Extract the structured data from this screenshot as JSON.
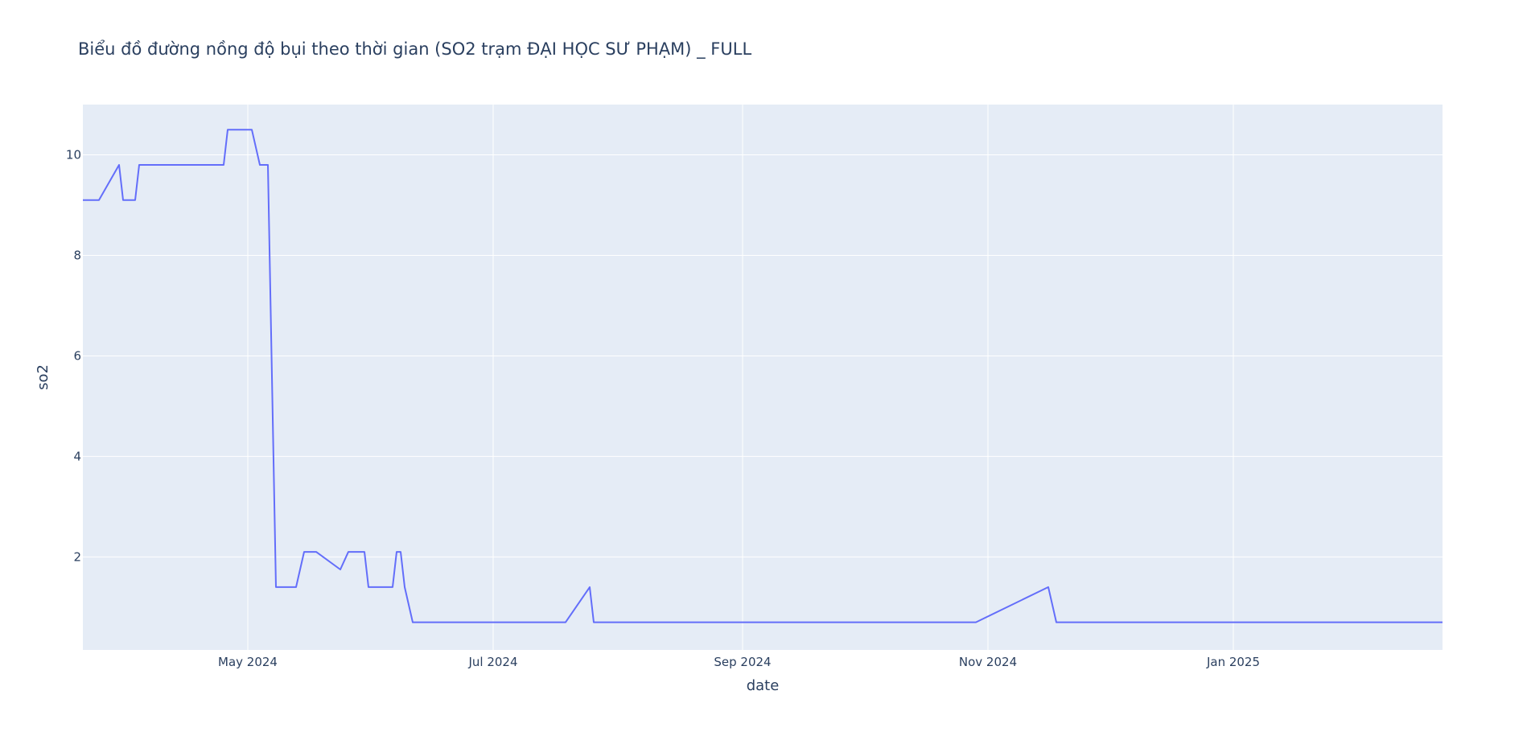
{
  "chart_data": {
    "type": "line",
    "title": "Biểu đồ đường nồng độ bụi theo thời gian (SO2 trạm ĐẠI HỌC SƯ PHẠM) _ FULL",
    "xlabel": "date",
    "ylabel": "so2",
    "x_ticks": [
      {
        "date": "2024-05-01",
        "label": "May 2024"
      },
      {
        "date": "2024-07-01",
        "label": "Jul 2024"
      },
      {
        "date": "2024-09-01",
        "label": "Sep 2024"
      },
      {
        "date": "2024-11-01",
        "label": "Nov 2024"
      },
      {
        "date": "2025-01-01",
        "label": "Jan 2025"
      }
    ],
    "y_ticks": [
      {
        "value": 2,
        "label": "2"
      },
      {
        "value": 4,
        "label": "4"
      },
      {
        "value": 6,
        "label": "6"
      },
      {
        "value": 8,
        "label": "8"
      },
      {
        "value": 10,
        "label": "10"
      }
    ],
    "xlim": [
      "2024-03-21",
      "2025-02-22"
    ],
    "ylim": [
      0.15,
      11.0
    ],
    "grid": true,
    "colors": {
      "line": "#636efa",
      "plot_bg": "#e5ecf6",
      "grid": "#ffffff",
      "text": "#2a3f5f"
    },
    "series": [
      {
        "x": [
          "2024-03-21",
          "2024-03-25",
          "2024-03-30",
          "2024-03-31",
          "2024-04-03",
          "2024-04-04",
          "2024-04-25",
          "2024-04-26",
          "2024-05-02",
          "2024-05-04",
          "2024-05-06",
          "2024-05-08",
          "2024-05-13",
          "2024-05-15",
          "2024-05-18",
          "2024-05-24",
          "2024-05-26",
          "2024-05-30",
          "2024-05-31",
          "2024-06-06",
          "2024-06-07",
          "2024-06-08",
          "2024-06-09",
          "2024-06-11",
          "2024-07-19",
          "2024-07-25",
          "2024-07-26",
          "2024-10-29",
          "2024-11-16",
          "2024-11-18",
          "2025-02-22"
        ],
        "y": [
          9.1,
          9.1,
          9.8,
          9.1,
          9.1,
          9.8,
          9.8,
          10.5,
          10.5,
          9.8,
          9.8,
          1.4,
          1.4,
          2.1,
          2.1,
          1.75,
          2.1,
          2.1,
          1.4,
          1.4,
          2.1,
          2.1,
          1.4,
          0.7,
          0.7,
          1.4,
          0.7,
          0.7,
          1.4,
          0.7,
          0.7
        ]
      }
    ]
  }
}
